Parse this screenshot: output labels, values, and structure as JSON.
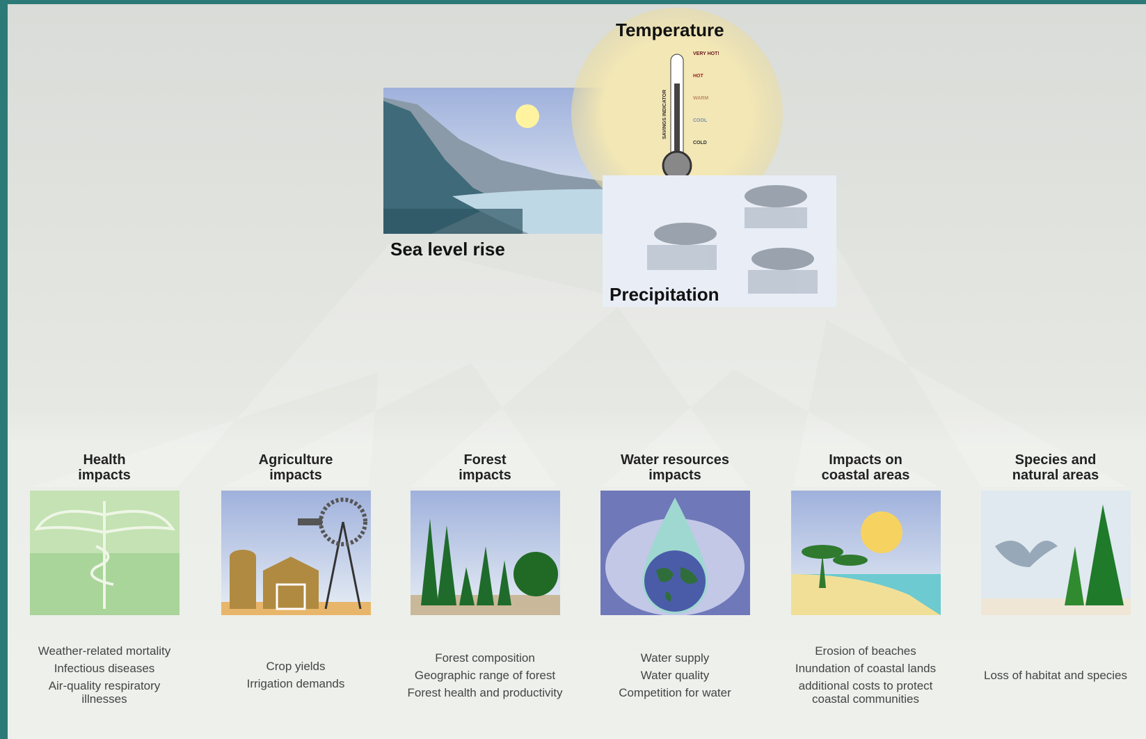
{
  "drivers": {
    "temperature": {
      "label": "Temperature",
      "thermometer": {
        "side_label": "SAVINGS INDICATOR",
        "levels": [
          "VERY HOT!",
          "HOT",
          "WARM",
          "COOL",
          "COLD"
        ]
      }
    },
    "sea_level": {
      "label": "Sea level rise"
    },
    "precipitation": {
      "label": "Precipitation"
    }
  },
  "impacts": [
    {
      "title": [
        "Health",
        "impacts"
      ],
      "items": [
        "Weather-related mortality",
        "Infectious diseases",
        "Air-quality respiratory illnesses"
      ]
    },
    {
      "title": [
        "Agriculture",
        "impacts"
      ],
      "items": [
        "Crop yields",
        "Irrigation demands"
      ]
    },
    {
      "title": [
        "Forest",
        "impacts"
      ],
      "items": [
        "Forest composition",
        "Geographic range of forest",
        "Forest health and productivity"
      ]
    },
    {
      "title": [
        "Water resources",
        "impacts"
      ],
      "items": [
        "Water supply",
        "Water quality",
        "Competition for water"
      ]
    },
    {
      "title": [
        "Impacts on",
        "coastal areas"
      ],
      "items": [
        "Erosion of beaches",
        "Inundation of coastal lands",
        "additional costs to protect coastal communities"
      ]
    },
    {
      "title": [
        "Species and",
        "natural areas"
      ],
      "items": [
        "Loss of habitat and species"
      ]
    }
  ]
}
